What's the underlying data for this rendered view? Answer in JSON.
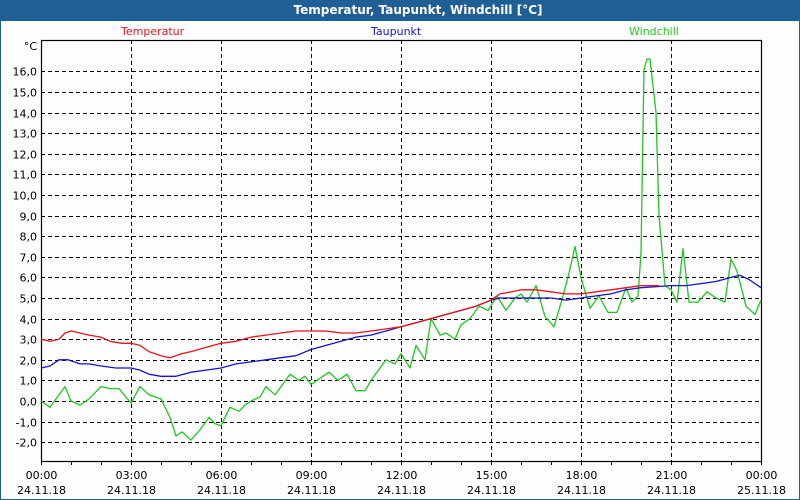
{
  "window": {
    "title": "Temperatur, Taupunkt, Windchill [°C]"
  },
  "legend": [
    {
      "label": "Temperatur",
      "color": "#e8141c",
      "x": 120
    },
    {
      "label": "Taupunkt",
      "color": "#1414c8",
      "x": 370
    },
    {
      "label": "Windchill",
      "color": "#1ec81e",
      "x": 628
    }
  ],
  "colors": {
    "titlebar": "#1f5f95",
    "grid": "#000000",
    "background": "#fdfdfd"
  },
  "chart_data": {
    "type": "line",
    "title": "Temperatur, Taupunkt, Windchill [°C]",
    "xlabel": "",
    "ylabel": "°C",
    "ylim": [
      -2.9,
      17.5
    ],
    "xlim_hours": [
      0,
      24
    ],
    "grid": true,
    "legend_position": "top",
    "y_unit_label": "°C",
    "y_ticks": [
      "16,0",
      "15,0",
      "14,0",
      "13,0",
      "12,0",
      "11,0",
      "10,0",
      "9,0",
      "8,0",
      "7,0",
      "6,0",
      "5,0",
      "4,0",
      "3,0",
      "2,0",
      "1,0",
      "0,0",
      "-1,0",
      "-2,0"
    ],
    "y_tick_values": [
      16,
      15,
      14,
      13,
      12,
      11,
      10,
      9,
      8,
      7,
      6,
      5,
      4,
      3,
      2,
      1,
      0,
      -1,
      -2
    ],
    "x_ticks": [
      {
        "hour": 0,
        "time": "00:00",
        "date": "24.11.18"
      },
      {
        "hour": 3,
        "time": "03:00",
        "date": "24.11.18"
      },
      {
        "hour": 6,
        "time": "06:00",
        "date": "24.11.18"
      },
      {
        "hour": 9,
        "time": "09:00",
        "date": "24.11.18"
      },
      {
        "hour": 12,
        "time": "12:00",
        "date": "24.11.18"
      },
      {
        "hour": 15,
        "time": "15:00",
        "date": "24.11.18"
      },
      {
        "hour": 18,
        "time": "18:00",
        "date": "24.11.18"
      },
      {
        "hour": 21,
        "time": "21:00",
        "date": "24.11.18"
      },
      {
        "hour": 24,
        "time": "00:00",
        "date": "25.11.18"
      }
    ],
    "series": [
      {
        "name": "Temperatur",
        "color": "#e8141c",
        "x_hours": [
          0,
          0.3,
          0.6,
          0.8,
          1.0,
          1.3,
          1.6,
          2.0,
          2.3,
          2.7,
          3.0,
          3.3,
          3.6,
          4.0,
          4.3,
          4.7,
          5.0,
          5.5,
          6.0,
          6.5,
          7.0,
          7.5,
          8.0,
          8.5,
          9.0,
          9.5,
          10.0,
          10.5,
          11.0,
          11.5,
          12.0,
          12.5,
          13.0,
          13.5,
          14.0,
          14.5,
          15.0,
          15.3,
          15.7,
          16.0,
          16.5,
          17.0,
          17.5,
          18.0,
          18.5,
          19.0,
          19.5,
          20.0,
          20.6
        ],
        "values": [
          3.0,
          2.9,
          3.0,
          3.3,
          3.4,
          3.3,
          3.2,
          3.1,
          2.9,
          2.8,
          2.8,
          2.7,
          2.4,
          2.2,
          2.1,
          2.3,
          2.4,
          2.6,
          2.8,
          2.9,
          3.1,
          3.2,
          3.3,
          3.4,
          3.4,
          3.4,
          3.3,
          3.3,
          3.4,
          3.5,
          3.6,
          3.8,
          4.0,
          4.2,
          4.4,
          4.6,
          4.9,
          5.2,
          5.3,
          5.4,
          5.4,
          5.3,
          5.2,
          5.2,
          5.3,
          5.4,
          5.5,
          5.6,
          5.6
        ]
      },
      {
        "name": "Taupunkt",
        "color": "#1414c8",
        "x_hours": [
          0,
          0.3,
          0.6,
          0.9,
          1.3,
          1.6,
          2.0,
          2.5,
          3.0,
          3.3,
          3.6,
          4.0,
          4.5,
          5.0,
          5.5,
          6.0,
          6.5,
          7.0,
          7.5,
          8.0,
          8.5,
          9.0,
          9.5,
          10.0,
          10.5,
          11.0,
          11.5,
          12.0,
          12.5,
          13.0,
          13.5,
          14.0,
          14.5,
          15.0,
          15.3,
          16.0,
          17.0,
          17.5,
          18.0,
          18.5,
          19.0,
          19.5,
          20.0,
          21.0,
          21.5,
          22.0,
          22.5,
          23.0,
          23.3,
          23.6,
          24.0
        ],
        "values": [
          1.6,
          1.7,
          2.0,
          2.0,
          1.8,
          1.8,
          1.7,
          1.6,
          1.6,
          1.5,
          1.3,
          1.2,
          1.2,
          1.4,
          1.5,
          1.6,
          1.8,
          1.9,
          2.0,
          2.1,
          2.2,
          2.5,
          2.7,
          2.9,
          3.1,
          3.2,
          3.4,
          3.6,
          3.8,
          4.0,
          4.2,
          4.4,
          4.6,
          4.9,
          5.0,
          5.0,
          5.0,
          4.9,
          5.0,
          5.1,
          5.2,
          5.4,
          5.5,
          5.6,
          5.6,
          5.7,
          5.8,
          6.0,
          6.1,
          5.9,
          5.5
        ]
      },
      {
        "name": "Windchill",
        "color": "#1ec81e",
        "x_hours": [
          0,
          0.3,
          0.5,
          0.8,
          1.0,
          1.3,
          1.6,
          2.0,
          2.3,
          2.6,
          3.0,
          3.3,
          3.6,
          4.0,
          4.3,
          4.5,
          4.7,
          5.0,
          5.3,
          5.6,
          5.8,
          6.0,
          6.3,
          6.6,
          6.8,
          7.0,
          7.3,
          7.5,
          7.8,
          8.0,
          8.3,
          8.6,
          8.8,
          9.0,
          9.3,
          9.6,
          9.9,
          10.2,
          10.5,
          10.8,
          11.0,
          11.3,
          11.5,
          11.8,
          12.0,
          12.3,
          12.5,
          12.8,
          13.0,
          13.3,
          13.5,
          13.8,
          14.0,
          14.3,
          14.6,
          14.9,
          15.2,
          15.5,
          15.8,
          16.0,
          16.2,
          16.5,
          16.8,
          17.1,
          17.4,
          17.6,
          17.8,
          18.0,
          18.3,
          18.6,
          18.9,
          19.2,
          19.5,
          19.7,
          19.9,
          20.0,
          20.1,
          20.2,
          20.3,
          20.5,
          20.6,
          20.8,
          21.0,
          21.2,
          21.4,
          21.6,
          21.9,
          22.2,
          22.5,
          22.8,
          23.0,
          23.2,
          23.5,
          23.8,
          24.0
        ],
        "values": [
          0.0,
          -0.3,
          0.1,
          0.7,
          0.0,
          -0.2,
          0.1,
          0.7,
          0.6,
          0.6,
          -0.1,
          0.7,
          0.3,
          0.1,
          -0.8,
          -1.7,
          -1.5,
          -1.9,
          -1.4,
          -0.8,
          -1.1,
          -1.2,
          -0.3,
          -0.5,
          -0.2,
          0.0,
          0.2,
          0.7,
          0.3,
          0.7,
          1.3,
          1.0,
          1.2,
          0.8,
          1.1,
          1.4,
          1.0,
          1.3,
          0.5,
          0.5,
          1.0,
          1.6,
          2.0,
          1.8,
          2.3,
          1.6,
          2.7,
          2.0,
          4.0,
          3.2,
          3.3,
          3.0,
          3.7,
          4.0,
          4.6,
          4.4,
          5.1,
          4.4,
          5.0,
          5.2,
          4.8,
          5.6,
          4.1,
          3.6,
          5.1,
          6.2,
          7.5,
          6.0,
          4.5,
          5.1,
          4.3,
          4.3,
          5.5,
          4.8,
          5.1,
          7.2,
          16.1,
          16.6,
          16.6,
          14.0,
          9.0,
          5.6,
          5.4,
          4.8,
          7.4,
          4.8,
          4.8,
          5.3,
          5.0,
          4.8,
          6.9,
          6.3,
          4.6,
          4.2,
          4.9
        ]
      }
    ]
  }
}
